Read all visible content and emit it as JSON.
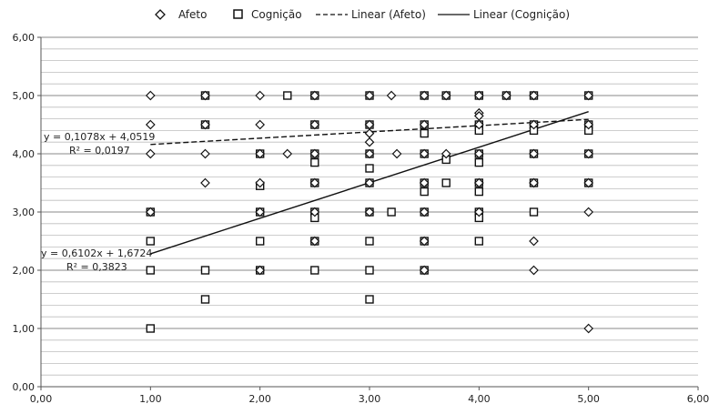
{
  "chart_data": {
    "type": "scatter",
    "xlim": [
      0,
      6
    ],
    "ylim": [
      0,
      6
    ],
    "x_ticks": [
      "0,00",
      "1,00",
      "2,00",
      "3,00",
      "4,00",
      "5,00",
      "6,00"
    ],
    "y_ticks": [
      "0,00",
      "1,00",
      "2,00",
      "3,00",
      "4,00",
      "5,00",
      "6,00"
    ],
    "grid": true,
    "legend_position": "top",
    "legend": [
      {
        "label": "Afeto",
        "kind": "marker",
        "marker": "diamond"
      },
      {
        "label": "Cognição",
        "kind": "marker",
        "marker": "square"
      },
      {
        "label": "Linear (Afeto)",
        "kind": "line",
        "style": "dashed"
      },
      {
        "label": "Linear (Cognição)",
        "kind": "line",
        "style": "solid"
      }
    ],
    "series": [
      {
        "name": "Afeto",
        "marker": "diamond",
        "points": [
          [
            1,
            5
          ],
          [
            1,
            4.5
          ],
          [
            1,
            4
          ],
          [
            1,
            3
          ],
          [
            1.5,
            5
          ],
          [
            1.5,
            4.5
          ],
          [
            1.5,
            4
          ],
          [
            1.5,
            3.5
          ],
          [
            2,
            5
          ],
          [
            2,
            4.5
          ],
          [
            2,
            4
          ],
          [
            2,
            3.5
          ],
          [
            2,
            3
          ],
          [
            2,
            2
          ],
          [
            2.25,
            4
          ],
          [
            2.5,
            5
          ],
          [
            2.5,
            4.5
          ],
          [
            2.5,
            4
          ],
          [
            2.5,
            3.5
          ],
          [
            2.5,
            3
          ],
          [
            2.5,
            2.5
          ],
          [
            3,
            5
          ],
          [
            3,
            4.5
          ],
          [
            3,
            4.35
          ],
          [
            3,
            4.2
          ],
          [
            3,
            4
          ],
          [
            3,
            3.5
          ],
          [
            3,
            3
          ],
          [
            3.2,
            5
          ],
          [
            3.25,
            4
          ],
          [
            3.5,
            5
          ],
          [
            3.5,
            4.5
          ],
          [
            3.5,
            4
          ],
          [
            3.5,
            3.5
          ],
          [
            3.5,
            3
          ],
          [
            3.5,
            2.5
          ],
          [
            3.5,
            2
          ],
          [
            3.7,
            5
          ],
          [
            3.7,
            4
          ],
          [
            4,
            5
          ],
          [
            4,
            4.7
          ],
          [
            4,
            4.65
          ],
          [
            4,
            4.5
          ],
          [
            4,
            4
          ],
          [
            4,
            3.5
          ],
          [
            4,
            3
          ],
          [
            4.25,
            5
          ],
          [
            4.5,
            5
          ],
          [
            4.5,
            4.5
          ],
          [
            4.5,
            4
          ],
          [
            4.5,
            3.5
          ],
          [
            4.5,
            2.5
          ],
          [
            4.5,
            2
          ],
          [
            5,
            5
          ],
          [
            5,
            4.5
          ],
          [
            5,
            4
          ],
          [
            5,
            3.5
          ],
          [
            5,
            3
          ],
          [
            5,
            1
          ]
        ]
      },
      {
        "name": "Cognição",
        "marker": "square",
        "points": [
          [
            1,
            3
          ],
          [
            1,
            2.5
          ],
          [
            1,
            2
          ],
          [
            1,
            1
          ],
          [
            1.5,
            5
          ],
          [
            1.5,
            4.5
          ],
          [
            1.5,
            2
          ],
          [
            1.5,
            1.5
          ],
          [
            2,
            4
          ],
          [
            2,
            3.45
          ],
          [
            2,
            3
          ],
          [
            2,
            2.5
          ],
          [
            2,
            2
          ],
          [
            2.25,
            5
          ],
          [
            2.5,
            5
          ],
          [
            2.5,
            4.5
          ],
          [
            2.5,
            4
          ],
          [
            2.5,
            3.85
          ],
          [
            2.5,
            3.5
          ],
          [
            2.5,
            3
          ],
          [
            2.5,
            2.9
          ],
          [
            2.5,
            2.5
          ],
          [
            2.5,
            2
          ],
          [
            3,
            5
          ],
          [
            3,
            4.5
          ],
          [
            3,
            4
          ],
          [
            3,
            3.75
          ],
          [
            3,
            3.5
          ],
          [
            3,
            3
          ],
          [
            3,
            2.5
          ],
          [
            3,
            2
          ],
          [
            3,
            1.5
          ],
          [
            3.2,
            3
          ],
          [
            3.5,
            5
          ],
          [
            3.5,
            4.5
          ],
          [
            3.5,
            4.35
          ],
          [
            3.5,
            4
          ],
          [
            3.5,
            3.5
          ],
          [
            3.5,
            3.35
          ],
          [
            3.5,
            3
          ],
          [
            3.5,
            2.5
          ],
          [
            3.5,
            2
          ],
          [
            3.7,
            5
          ],
          [
            3.7,
            3.9
          ],
          [
            3.7,
            3.5
          ],
          [
            4,
            5
          ],
          [
            4,
            4.5
          ],
          [
            4,
            4.4
          ],
          [
            4,
            4
          ],
          [
            4,
            3.85
          ],
          [
            4,
            3.5
          ],
          [
            4,
            3.35
          ],
          [
            4,
            3
          ],
          [
            4,
            2.9
          ],
          [
            4,
            2.5
          ],
          [
            4.25,
            5
          ],
          [
            4.5,
            5
          ],
          [
            4.5,
            4.5
          ],
          [
            4.5,
            4.4
          ],
          [
            4.5,
            4
          ],
          [
            4.5,
            3.5
          ],
          [
            4.5,
            3
          ],
          [
            5,
            5
          ],
          [
            5,
            4.5
          ],
          [
            5,
            4.4
          ],
          [
            5,
            4
          ],
          [
            5,
            3.5
          ]
        ]
      }
    ],
    "trendlines": [
      {
        "name": "Linear (Afeto)",
        "style": "dashed",
        "slope": 0.1078,
        "intercept": 4.0519,
        "x_range": [
          1,
          5
        ],
        "equation": "y = 0,1078x + 4,0519",
        "r2": "R² = 0,0197"
      },
      {
        "name": "Linear (Cognição)",
        "style": "solid",
        "slope": 0.6102,
        "intercept": 1.6724,
        "x_range": [
          1,
          5
        ],
        "equation": "y = 0,6102x + 1,6724",
        "r2": "R² = 0,3823"
      }
    ]
  }
}
